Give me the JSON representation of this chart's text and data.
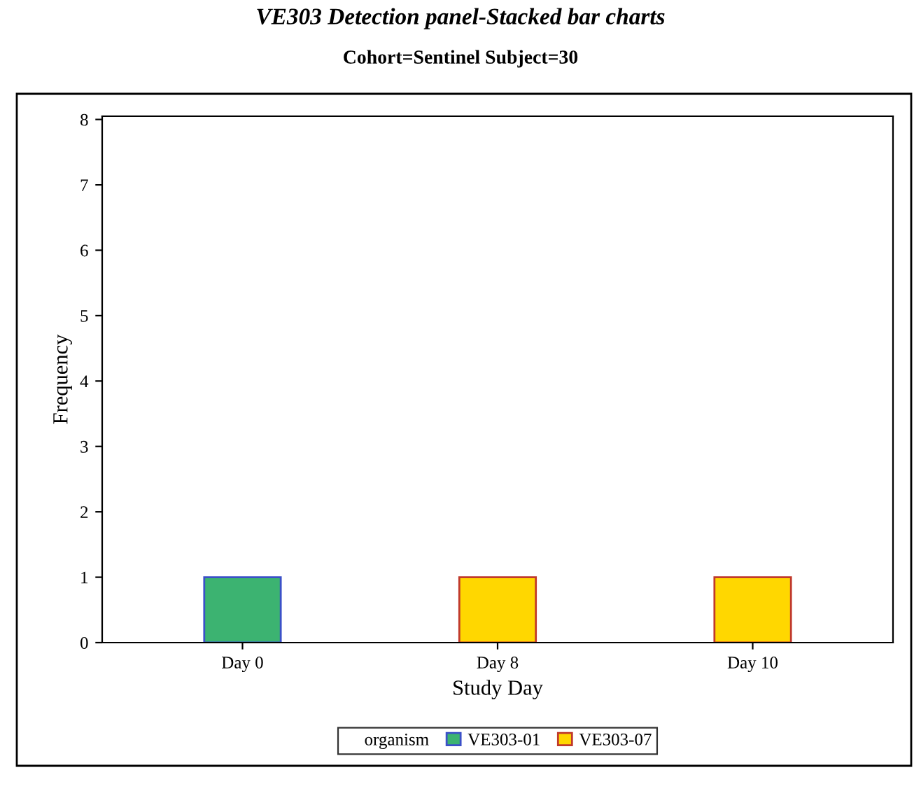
{
  "chart_data": {
    "type": "bar",
    "title": "VE303 Detection panel-Stacked bar charts",
    "subtitle": "Cohort=Sentinel Subject=30",
    "xlabel": "Study Day",
    "ylabel": "Frequency",
    "legend_title": "organism",
    "categories": [
      "Day 0",
      "Day 8",
      "Day 10"
    ],
    "series": [
      {
        "name": "VE303-01",
        "color": "#3cb371",
        "values": [
          1,
          null,
          null
        ]
      },
      {
        "name": "VE303-07",
        "color": "#ffd700",
        "values": [
          null,
          1,
          1
        ]
      }
    ],
    "stacked": true,
    "ylim": [
      0,
      8.05
    ],
    "yticks": [
      0,
      1,
      2,
      3,
      4,
      5,
      6,
      7,
      8
    ],
    "grid": false,
    "legend": "bottom"
  }
}
